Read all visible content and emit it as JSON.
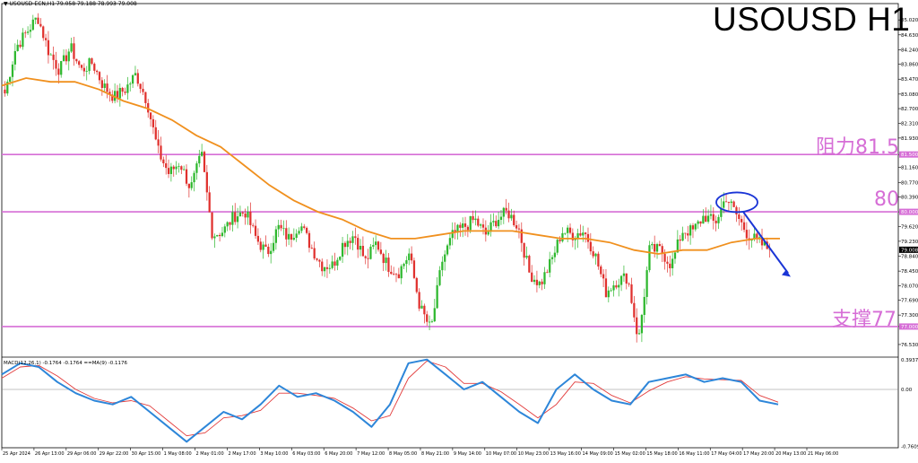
{
  "header": {
    "symbol_info": "▼ USOUSD-ECN,H1  79.058 79.188 78.993 79.008",
    "title": "USOUSD H1"
  },
  "levels": [
    {
      "name": "resistance",
      "label": "阻力81.5",
      "price": 81.5,
      "tag": "81.500"
    },
    {
      "name": "pivot",
      "label": "80",
      "price": 80.0,
      "tag": "80.000"
    },
    {
      "name": "support",
      "label": "支撑77",
      "price": 77.0,
      "tag": "77.000"
    }
  ],
  "macd": {
    "label": "MACD(12,26,1) -0.1764 -0.1764  ==MA(9) -0.1176",
    "axis_labels": [
      "0.3937",
      "0.00",
      "-0.7609"
    ]
  },
  "chart_data": {
    "type": "candlestick",
    "symbol": "USOUSD",
    "timeframe": "H1",
    "last_price": 79.008,
    "price_axis_labels": [
      "85.020",
      "84.630",
      "84.240",
      "83.860",
      "83.470",
      "83.080",
      "82.700",
      "82.310",
      "81.930",
      "81.500",
      "81.160",
      "80.770",
      "80.390",
      "80.000",
      "79.620",
      "79.230",
      "78.840",
      "78.450",
      "78.070",
      "77.690",
      "77.300",
      "77.000",
      "76.530"
    ],
    "ylim": [
      76.2,
      85.4
    ],
    "x_labels": [
      "25 Apr 2024",
      "26 Apr 13:00",
      "29 Apr 06:00",
      "29 Apr 22:00",
      "30 Apr 15:00",
      "1 May 08:00",
      "2 May 01:00",
      "2 May 17:00",
      "3 May 10:00",
      "6 May 03:00",
      "6 May 20:00",
      "7 May 12:00",
      "8 May 05:00",
      "8 May 21:00",
      "9 May 14:00",
      "10 May 07:00",
      "10 May 23:00",
      "13 May 16:00",
      "14 May 09:00",
      "15 May 02:00",
      "15 May 18:00",
      "16 May 11:00",
      "17 May 04:00",
      "17 May 20:00",
      "20 May 13:00",
      "21 May 06:00"
    ],
    "price_path": [
      83.1,
      84.3,
      84.7,
      85.1,
      84.2,
      83.7,
      84.3,
      83.7,
      83.9,
      83.3,
      83.0,
      83.2,
      83.6,
      82.9,
      81.6,
      81.0,
      81.3,
      80.6,
      81.5,
      79.4,
      79.5,
      79.9,
      80.0,
      79.3,
      78.9,
      79.6,
      79.3,
      79.7,
      79.1,
      78.6,
      78.6,
      79.2,
      79.4,
      78.7,
      79.2,
      78.6,
      78.4,
      78.9,
      77.5,
      76.9,
      78.7,
      79.4,
      79.6,
      79.8,
      79.4,
      79.8,
      80.0,
      79.6,
      78.4,
      78.1,
      78.7,
      79.5,
      79.4,
      79.5,
      78.9,
      77.9,
      78.2,
      78.3,
      76.6,
      79.0,
      79.0,
      78.6,
      79.5,
      79.5,
      79.9,
      79.7,
      80.4,
      79.9,
      79.4,
      79.2,
      79.0
    ],
    "ma_path": [
      83.3,
      83.5,
      83.4,
      83.4,
      83.2,
      82.9,
      82.7,
      82.4,
      82.0,
      81.7,
      81.2,
      80.7,
      80.3,
      80.0,
      79.8,
      79.5,
      79.3,
      79.3,
      79.4,
      79.5,
      79.5,
      79.5,
      79.4,
      79.3,
      79.3,
      79.2,
      79.0,
      78.9,
      79.0,
      79.0,
      79.2,
      79.3,
      79.3
    ],
    "macd_path": [
      0.2,
      0.35,
      0.3,
      0.1,
      -0.05,
      -0.15,
      -0.2,
      -0.1,
      -0.3,
      -0.5,
      -0.7,
      -0.5,
      -0.3,
      -0.4,
      -0.2,
      0.05,
      -0.1,
      -0.05,
      -0.15,
      -0.3,
      -0.5,
      -0.2,
      0.35,
      0.4,
      0.2,
      0.0,
      0.1,
      -0.1,
      -0.3,
      -0.45,
      0.0,
      0.2,
      0.0,
      -0.15,
      -0.2,
      0.1,
      0.15,
      0.2,
      0.1,
      0.15,
      0.1,
      -0.15,
      -0.2
    ],
    "signal_path": [
      0.15,
      0.3,
      0.32,
      0.18,
      0.0,
      -0.12,
      -0.18,
      -0.15,
      -0.22,
      -0.42,
      -0.62,
      -0.58,
      -0.38,
      -0.35,
      -0.28,
      -0.05,
      -0.05,
      -0.08,
      -0.12,
      -0.25,
      -0.42,
      -0.35,
      0.15,
      0.38,
      0.3,
      0.08,
      0.08,
      -0.03,
      -0.2,
      -0.38,
      -0.2,
      0.1,
      0.08,
      -0.08,
      -0.18,
      -0.02,
      0.1,
      0.17,
      0.14,
      0.13,
      0.12,
      -0.08,
      -0.17
    ],
    "macd_ylim": [
      -0.78,
      0.42
    ],
    "colors": {
      "bull": "#2eb82e",
      "bear": "#e0312e",
      "ma": "#f0901e",
      "level": "#d66ed6",
      "annotation": "#1a35d6",
      "macd": "#2d86d9",
      "signal": "#e23b3b"
    }
  }
}
